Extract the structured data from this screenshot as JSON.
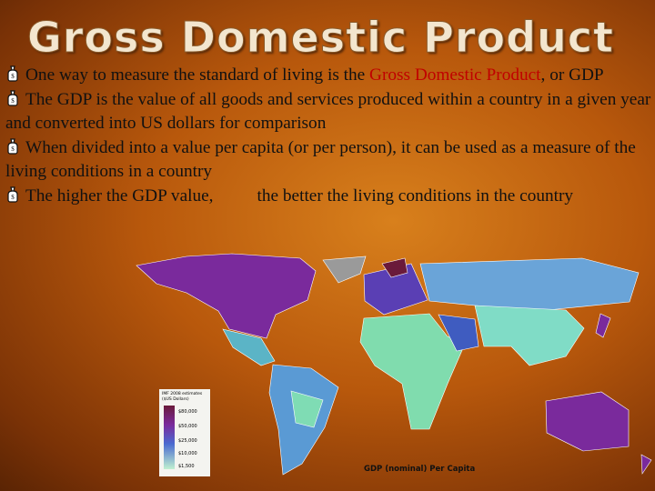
{
  "title": "Gross Domestic Product",
  "bullets": [
    {
      "segments": [
        "One way to measure the standard of living is the ",
        "Gross Domestic Product",
        ", or GDP"
      ]
    },
    {
      "segments": [
        "The GDP is the value of all goods and services produced within a country in a given year and converted into US dollars for comparison"
      ]
    },
    {
      "segments": [
        "When divided into a value per capita (or per person), it can be used as a measure of the living conditions in a country"
      ]
    },
    {
      "segments": [
        "The higher the GDP value,",
        "the better the living conditions in the country"
      ]
    }
  ],
  "map": {
    "legend_title": [
      "IMF 2008 estimates",
      "($US Dollars)"
    ],
    "legend_labels": [
      "$80,000",
      "$50,000",
      "$25,000",
      "$10,000",
      "$1,500"
    ],
    "caption": "GDP (nominal) Per Capita"
  }
}
